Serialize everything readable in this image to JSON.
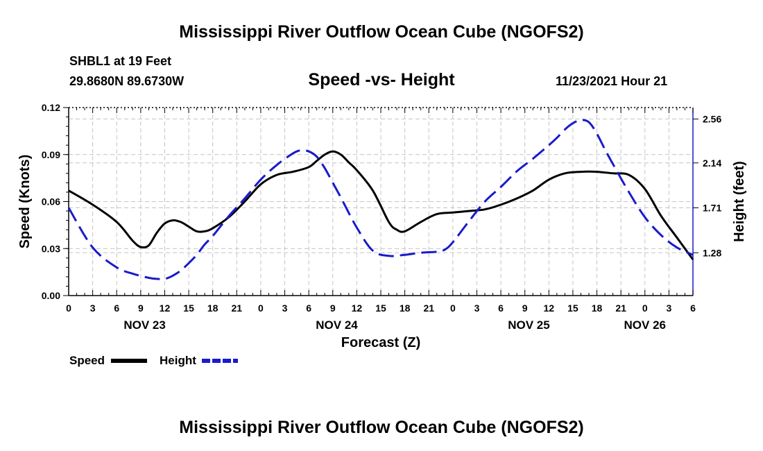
{
  "page": {
    "title": "Mississippi River Outflow Ocean Cube (NGOFS2)",
    "footer_title": "Mississippi River Outflow Ocean Cube (NGOFS2)"
  },
  "station": {
    "name": "SHBL1 at 19 Feet",
    "coords": "29.8680N  89.6730W",
    "run_time": "11/23/2021 Hour 21"
  },
  "chart_data": {
    "type": "line",
    "title": "Speed -vs- Height",
    "xlabel": "Forecast (Z)",
    "ylabel": "Speed (Knots)",
    "y2label": "Height (feet)",
    "grid": true,
    "xlim": [
      0,
      78
    ],
    "ylim": [
      0,
      0.12
    ],
    "y2lim": [
      0.87,
      2.67
    ],
    "y_ticks": [
      "0.00",
      "0.03",
      "0.06",
      "0.09",
      "0.12"
    ],
    "y_tick_values": [
      0,
      0.03,
      0.06,
      0.09,
      0.12
    ],
    "y2_ticks": [
      "1.28",
      "1.71",
      "2.14",
      "2.56"
    ],
    "y2_tick_values": [
      1.28,
      1.71,
      2.14,
      2.56
    ],
    "x_ticks": [
      "0",
      "3",
      "6",
      "9",
      "12",
      "15",
      "18",
      "21",
      "0",
      "3",
      "6",
      "9",
      "12",
      "15",
      "18",
      "21",
      "0",
      "3",
      "6",
      "9",
      "12",
      "15",
      "18",
      "21",
      "0",
      "3",
      "6"
    ],
    "x_tick_values": [
      0,
      3,
      6,
      9,
      12,
      15,
      18,
      21,
      24,
      27,
      30,
      33,
      36,
      39,
      42,
      45,
      48,
      51,
      54,
      57,
      60,
      63,
      66,
      69,
      72,
      75,
      78
    ],
    "day_labels": [
      {
        "label": "NOV 23",
        "hour": 9.5
      },
      {
        "label": "NOV 24",
        "hour": 33.5
      },
      {
        "label": "NOV 25",
        "hour": 57.5
      },
      {
        "label": "NOV 26",
        "hour": 72
      }
    ],
    "legend": [
      {
        "name": "Speed",
        "color": "#000000",
        "style": "solid"
      },
      {
        "name": "Height",
        "color": "#1a1acc",
        "style": "dashed"
      }
    ],
    "series": [
      {
        "name": "Speed",
        "axis": "left",
        "color": "#000000",
        "style": "solid",
        "x": [
          0,
          3,
          6,
          8,
          9,
          10,
          11,
          12,
          13,
          14,
          15,
          16,
          17,
          18,
          20,
          22,
          24,
          26,
          28,
          30,
          31,
          32,
          33,
          34,
          35,
          36,
          38,
          40,
          41,
          42,
          44,
          46,
          48,
          50,
          52,
          54,
          56,
          58,
          60,
          62,
          64,
          66,
          68,
          70,
          72,
          74,
          76,
          78
        ],
        "y": [
          0.067,
          0.058,
          0.047,
          0.035,
          0.031,
          0.032,
          0.04,
          0.046,
          0.048,
          0.047,
          0.044,
          0.041,
          0.041,
          0.043,
          0.05,
          0.06,
          0.071,
          0.077,
          0.079,
          0.082,
          0.086,
          0.09,
          0.092,
          0.09,
          0.085,
          0.08,
          0.067,
          0.047,
          0.042,
          0.041,
          0.047,
          0.052,
          0.053,
          0.054,
          0.055,
          0.058,
          0.062,
          0.067,
          0.074,
          0.078,
          0.079,
          0.079,
          0.078,
          0.077,
          0.068,
          0.051,
          0.037,
          0.023
        ]
      },
      {
        "name": "Height",
        "axis": "right",
        "color": "#1a1acc",
        "style": "dashed",
        "x": [
          0,
          3,
          6,
          8,
          10,
          11,
          12,
          13,
          14,
          15,
          16,
          17,
          18,
          20,
          22,
          24,
          26,
          28,
          29,
          30,
          31,
          32,
          33,
          34,
          36,
          38,
          40,
          42,
          44,
          46,
          47,
          48,
          50,
          52,
          54,
          56,
          58,
          60,
          61,
          62,
          63,
          64,
          65,
          66,
          67,
          68,
          70,
          72,
          74,
          76,
          78
        ],
        "y": [
          1.71,
          1.33,
          1.14,
          1.08,
          1.04,
          1.03,
          1.03,
          1.06,
          1.11,
          1.18,
          1.26,
          1.36,
          1.44,
          1.63,
          1.8,
          1.98,
          2.12,
          2.23,
          2.26,
          2.25,
          2.2,
          2.09,
          1.95,
          1.81,
          1.52,
          1.3,
          1.25,
          1.26,
          1.28,
          1.29,
          1.31,
          1.38,
          1.58,
          1.77,
          1.91,
          2.06,
          2.18,
          2.31,
          2.38,
          2.46,
          2.52,
          2.55,
          2.53,
          2.42,
          2.27,
          2.13,
          1.86,
          1.62,
          1.45,
          1.33,
          1.26
        ]
      }
    ]
  }
}
